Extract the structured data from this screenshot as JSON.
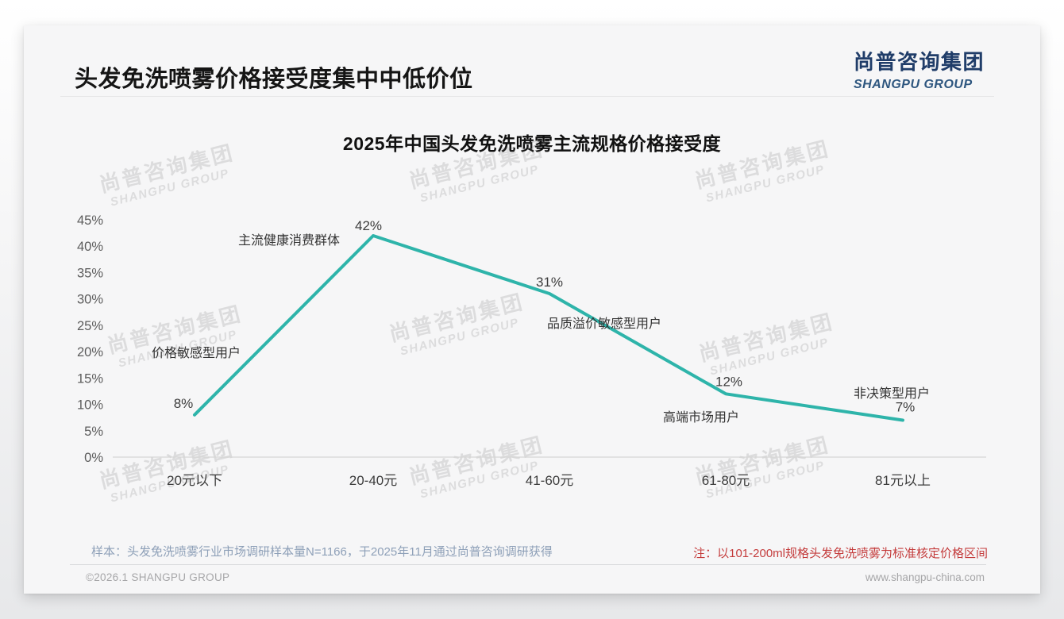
{
  "header": {
    "title": "头发免洗喷雾价格接受度集中中低价位",
    "logo_cn": "尚普咨询集团",
    "logo_en": "SHANGPU GROUP"
  },
  "chart_data": {
    "type": "line",
    "title": "2025年中国头发免洗喷雾主流规格价格接受度",
    "categories": [
      "20元以下",
      "20-40元",
      "41-60元",
      "61-80元",
      "81元以上"
    ],
    "values": [
      8,
      42,
      31,
      12,
      7
    ],
    "value_labels": [
      "8%",
      "42%",
      "31%",
      "12%",
      "7%"
    ],
    "annotations": [
      "价格敏感型用户",
      "主流健康消费群体",
      "品质溢价敏感型用户",
      "高端市场用户",
      "非决策型用户"
    ],
    "y_tick_values": [
      0,
      5,
      10,
      15,
      20,
      25,
      30,
      35,
      40,
      45
    ],
    "y_tick_labels": [
      "0%",
      "5%",
      "10%",
      "15%",
      "20%",
      "25%",
      "30%",
      "35%",
      "40%",
      "45%"
    ],
    "ylim": [
      0,
      45
    ],
    "xlabel": "",
    "ylabel": "",
    "grid": false,
    "legend": "none",
    "line_color": "#2eb4aa"
  },
  "watermark": {
    "line1": "尚普咨询集团",
    "line2": "SHANGPU GROUP"
  },
  "footer": {
    "sample_note": "样本：头发免洗喷雾行业市场调研样本量N=1166，于2025年11月通过尚普咨询调研获得",
    "price_note": "注：以101-200ml规格头发免洗喷雾为标准核定价格区间",
    "copyright": "©2026.1 SHANGPU GROUP",
    "website": "www.shangpu-china.com"
  },
  "colors": {
    "line": "#2eb4aa",
    "logo_cn": "#203d69",
    "logo_en": "#2e567f",
    "note_red": "#c43c3c",
    "axis_text": "#5c5c5c",
    "label_text": "#3c3c3c",
    "annotation_text": "#333333"
  }
}
